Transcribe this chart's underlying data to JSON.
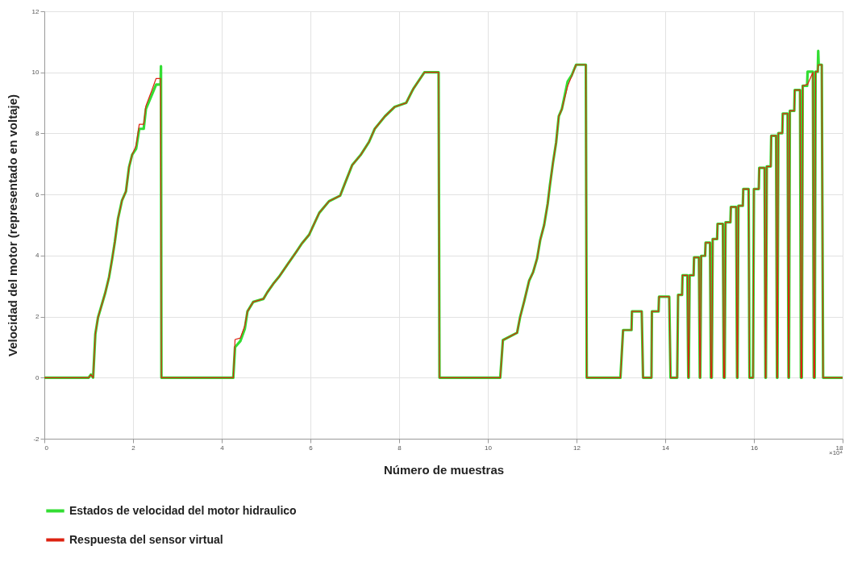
{
  "chart_data": {
    "type": "line",
    "xlabel": "Número de muestras",
    "ylabel": "Velocidad del motor (representado en voltaje)",
    "annotations": [
      "×10⁴"
    ],
    "xlim": [
      0,
      18
    ],
    "xticks": [
      0,
      2,
      4,
      6,
      8,
      10,
      12,
      14,
      16,
      18
    ],
    "ylim": [
      -2,
      12
    ],
    "yticks": [
      -2,
      0,
      2,
      4,
      6,
      8,
      10,
      12
    ],
    "grid": true,
    "legend": "bottom",
    "line_style": "solid",
    "marker": "none",
    "series": [
      {
        "name": "Estados de velocidad del motor hidraulico",
        "color": "#33dd33",
        "x": [
          0,
          1.0,
          1.05,
          1.1,
          1.15,
          1.21,
          1.37,
          1.46,
          1.53,
          1.59,
          1.66,
          1.75,
          1.84,
          1.91,
          1.98,
          2.07,
          2.14,
          2.24,
          2.29,
          2.42,
          2.52,
          2.62,
          2.63,
          2.64,
          4.26,
          4.3,
          4.42,
          4.52,
          4.58,
          4.71,
          4.94,
          5.03,
          5.16,
          5.29,
          5.48,
          5.68,
          5.81,
          5.97,
          6.1,
          6.2,
          6.42,
          6.67,
          6.78,
          6.94,
          7.13,
          7.32,
          7.45,
          7.68,
          7.9,
          8.16,
          8.29,
          8.32,
          8.57,
          8.89,
          8.91,
          10.28,
          10.34,
          10.66,
          10.73,
          10.82,
          10.93,
          11.02,
          11.11,
          11.18,
          11.27,
          11.35,
          11.4,
          11.47,
          11.54,
          11.6,
          11.67,
          11.8,
          11.89,
          11.99,
          12.21,
          12.23,
          12.99,
          13.05,
          13.24,
          13.25,
          13.47,
          13.5,
          13.69,
          13.7,
          13.85,
          13.86,
          14.09,
          14.12,
          14.27,
          14.29,
          14.38,
          14.39,
          14.5,
          14.52,
          14.53,
          14.55,
          14.64,
          14.65,
          14.76,
          14.78,
          14.79,
          14.81,
          14.9,
          14.91,
          15.01,
          15.03,
          15.05,
          15.07,
          15.17,
          15.18,
          15.3,
          15.32,
          15.34,
          15.36,
          15.47,
          15.48,
          15.6,
          15.62,
          15.63,
          15.65,
          15.75,
          15.76,
          15.88,
          15.9,
          15.98,
          16.0,
          16.11,
          16.12,
          16.24,
          16.26,
          16.27,
          16.29,
          16.38,
          16.39,
          16.5,
          16.52,
          16.53,
          16.55,
          16.64,
          16.65,
          16.76,
          16.78,
          16.79,
          16.81,
          16.91,
          16.92,
          17.04,
          17.06,
          17.08,
          17.1,
          17.2,
          17.21,
          17.33,
          17.35,
          17.37,
          17.39,
          17.44,
          17.45,
          17.46,
          17.53,
          17.56,
          18
        ],
        "values": [
          0,
          0,
          0.1,
          0,
          1.43,
          1.97,
          2.76,
          3.3,
          3.9,
          4.45,
          5.2,
          5.8,
          6.1,
          6.9,
          7.3,
          7.5,
          8.15,
          8.15,
          8.8,
          9.25,
          9.6,
          9.6,
          10.2,
          0,
          0,
          1.0,
          1.2,
          1.6,
          2.17,
          2.48,
          2.58,
          2.8,
          3.07,
          3.3,
          3.7,
          4.12,
          4.4,
          4.68,
          5.09,
          5.4,
          5.78,
          5.96,
          6.37,
          6.96,
          7.29,
          7.72,
          8.15,
          8.56,
          8.87,
          9.0,
          9.38,
          9.46,
          10.0,
          10.0,
          0,
          0,
          1.23,
          1.47,
          2.0,
          2.5,
          3.17,
          3.45,
          3.9,
          4.5,
          5.0,
          5.7,
          6.3,
          7.05,
          7.7,
          8.56,
          8.8,
          9.7,
          9.9,
          10.25,
          10.25,
          0,
          0,
          1.56,
          1.56,
          2.17,
          2.17,
          0,
          0,
          2.17,
          2.17,
          2.65,
          2.65,
          0,
          0,
          2.71,
          2.71,
          3.35,
          3.35,
          0,
          0,
          3.35,
          3.35,
          3.94,
          3.94,
          0,
          0,
          3.99,
          3.99,
          4.42,
          4.42,
          0,
          0,
          4.54,
          4.54,
          5.04,
          5.04,
          0,
          0,
          5.09,
          5.09,
          5.59,
          5.59,
          0,
          0,
          5.63,
          5.63,
          6.18,
          6.18,
          0,
          0,
          6.18,
          6.18,
          6.87,
          6.87,
          0,
          0,
          6.92,
          6.92,
          7.92,
          7.92,
          0,
          0,
          8.01,
          8.01,
          8.65,
          8.65,
          0,
          0,
          8.74,
          8.74,
          9.42,
          9.42,
          0,
          0,
          9.56,
          9.56,
          10.02,
          10.02,
          0,
          0,
          10.02,
          10.02,
          10.7,
          10.25,
          10.25,
          0,
          0
        ]
      },
      {
        "name": "Respuesta del sensor virtual",
        "color": "#dd2211",
        "x": [
          0,
          1.0,
          1.05,
          1.1,
          1.15,
          1.21,
          1.37,
          1.46,
          1.53,
          1.59,
          1.66,
          1.75,
          1.84,
          1.91,
          1.98,
          2.07,
          2.14,
          2.24,
          2.29,
          2.42,
          2.52,
          2.62,
          2.64,
          4.26,
          4.3,
          4.42,
          4.52,
          4.58,
          4.71,
          4.94,
          5.03,
          5.16,
          5.29,
          5.48,
          5.68,
          5.81,
          5.97,
          6.1,
          6.2,
          6.42,
          6.67,
          6.78,
          6.94,
          7.13,
          7.32,
          7.45,
          7.68,
          7.9,
          8.16,
          8.29,
          8.32,
          8.57,
          8.89,
          8.91,
          10.28,
          10.34,
          10.66,
          10.73,
          10.82,
          10.93,
          11.02,
          11.11,
          11.18,
          11.27,
          11.35,
          11.4,
          11.47,
          11.54,
          11.6,
          11.67,
          11.8,
          11.89,
          11.99,
          12.21,
          12.23,
          12.99,
          13.05,
          13.24,
          13.25,
          13.47,
          13.5,
          13.69,
          13.7,
          13.85,
          13.86,
          14.09,
          14.12,
          14.27,
          14.29,
          14.38,
          14.39,
          14.5,
          14.52,
          14.53,
          14.55,
          14.64,
          14.65,
          14.76,
          14.78,
          14.79,
          14.81,
          14.9,
          14.91,
          15.01,
          15.03,
          15.05,
          15.07,
          15.17,
          15.18,
          15.3,
          15.32,
          15.34,
          15.36,
          15.47,
          15.48,
          15.6,
          15.62,
          15.63,
          15.65,
          15.75,
          15.76,
          15.88,
          15.9,
          15.98,
          16.0,
          16.11,
          16.12,
          16.24,
          16.26,
          16.27,
          16.29,
          16.38,
          16.39,
          16.5,
          16.52,
          16.53,
          16.55,
          16.64,
          16.65,
          16.76,
          16.78,
          16.79,
          16.81,
          16.91,
          16.92,
          17.04,
          17.06,
          17.08,
          17.1,
          17.2,
          17.21,
          17.33,
          17.35,
          17.37,
          17.39,
          17.44,
          17.45,
          17.53,
          17.56,
          18
        ],
        "values": [
          0,
          0,
          0.1,
          0,
          1.43,
          1.97,
          2.76,
          3.3,
          3.9,
          4.45,
          5.2,
          5.8,
          6.1,
          6.9,
          7.3,
          7.6,
          8.3,
          8.3,
          8.9,
          9.4,
          9.8,
          9.8,
          0,
          0,
          1.25,
          1.3,
          1.7,
          2.17,
          2.48,
          2.58,
          2.8,
          3.07,
          3.3,
          3.7,
          4.12,
          4.4,
          4.68,
          5.09,
          5.4,
          5.78,
          5.96,
          6.37,
          6.96,
          7.29,
          7.72,
          8.15,
          8.56,
          8.87,
          9.0,
          9.38,
          9.46,
          10.0,
          10.0,
          0,
          0,
          1.23,
          1.47,
          2.0,
          2.5,
          3.17,
          3.45,
          3.9,
          4.5,
          5.0,
          5.7,
          6.3,
          7.05,
          7.7,
          8.56,
          8.8,
          9.55,
          9.87,
          10.25,
          10.25,
          0,
          0,
          1.56,
          1.56,
          2.17,
          2.17,
          0,
          0,
          2.17,
          2.17,
          2.65,
          2.65,
          0,
          0,
          2.71,
          2.71,
          3.35,
          3.35,
          0,
          0,
          3.35,
          3.35,
          3.94,
          3.94,
          0,
          0,
          3.99,
          3.99,
          4.42,
          4.42,
          0,
          0,
          4.54,
          4.54,
          5.04,
          5.04,
          0,
          0,
          5.09,
          5.09,
          5.59,
          5.59,
          0,
          0,
          5.63,
          5.63,
          6.18,
          6.18,
          0,
          0,
          6.18,
          6.18,
          6.87,
          6.87,
          0,
          0,
          6.92,
          6.92,
          7.92,
          7.92,
          0,
          0,
          8.01,
          8.01,
          8.65,
          8.65,
          0,
          0,
          8.74,
          8.74,
          9.42,
          9.42,
          0,
          0,
          9.56,
          9.6,
          9.6,
          10.0,
          0,
          0,
          10.02,
          10.02,
          10.25,
          10.25,
          0,
          0
        ]
      }
    ]
  }
}
